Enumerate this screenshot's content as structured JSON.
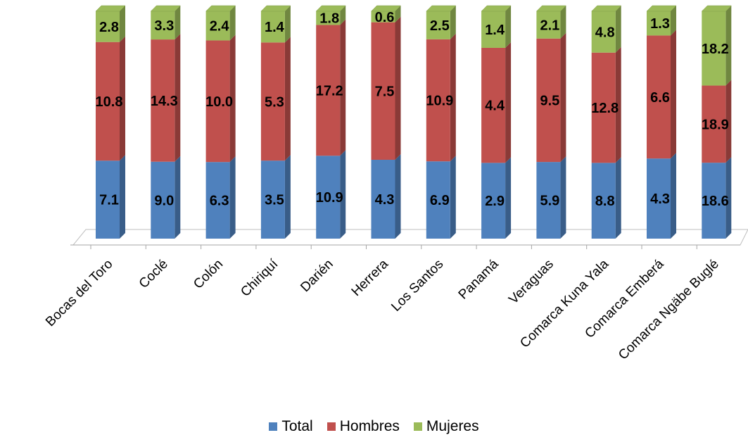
{
  "chart_data": {
    "type": "bar",
    "stacked": true,
    "three_d": true,
    "categories": [
      "Bocas del Toro",
      "Coclé",
      "Colón",
      "Chiriquí",
      "Darién",
      "Herrera",
      "Los Santos",
      "Panamá",
      "Veraguas",
      "Comarca Kuna Yala",
      "Comarca Emberá",
      "Comarca Ngäbe Buglé"
    ],
    "series": [
      {
        "name": "Total",
        "color": "#4F81BD",
        "values": [
          7.1,
          9.0,
          6.3,
          3.5,
          10.9,
          4.3,
          6.9,
          2.9,
          5.9,
          8.8,
          4.3,
          18.6
        ],
        "labels": [
          "7.1",
          "9.0",
          "6.3",
          "3.5",
          "10.9",
          "4.3",
          "6.9",
          "2.9",
          "5.9",
          "8.8",
          "4.3",
          "18.6"
        ]
      },
      {
        "name": "Hombres",
        "color": "#C0504D",
        "values": [
          10.8,
          14.3,
          10.0,
          5.3,
          17.2,
          7.5,
          10.9,
          4.4,
          9.5,
          12.8,
          6.6,
          18.9
        ],
        "labels": [
          "10.8",
          "14.3",
          "10.0",
          "5.3",
          "17.2",
          "7.5",
          "10.9",
          "4.4",
          "9.5",
          "12.8",
          "6.6",
          "18.9"
        ]
      },
      {
        "name": "Mujeres",
        "color": "#9BBB59",
        "values": [
          2.8,
          3.3,
          2.4,
          1.4,
          1.8,
          0.6,
          2.5,
          1.4,
          2.1,
          4.8,
          1.3,
          18.2
        ],
        "labels": [
          "2.8",
          "3.3",
          "2.4",
          "1.4",
          "1.8",
          "0.6",
          "2.5",
          "1.4",
          "2.1",
          "4.8",
          "1.3",
          "18.2"
        ]
      }
    ],
    "normalized_to_100": true,
    "legend_position": "bottom",
    "grid": false
  }
}
